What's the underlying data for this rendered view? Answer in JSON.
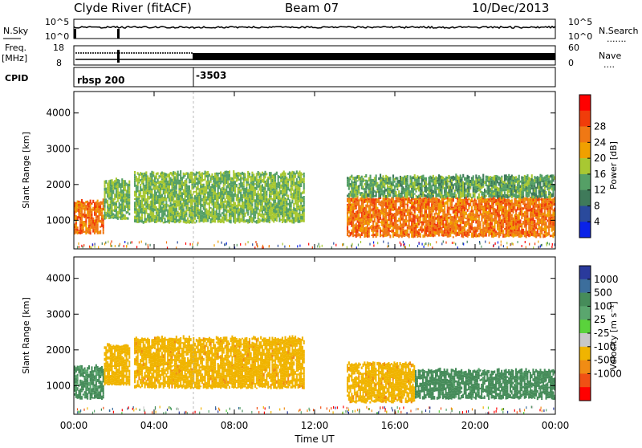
{
  "header": {
    "station": "Clyde River (fitACF)",
    "beam": "Beam 07",
    "date": "10/Dec/2013"
  },
  "panels": {
    "nsky_label": "N.Sky",
    "nsearch_label": "N.Search",
    "nsearch_dots": ".......",
    "nsky_ticks": [
      "10^5",
      "10^0"
    ],
    "nsearch_ticks": [
      "10^5",
      "10^0"
    ],
    "freq_label_1": "Freq.",
    "freq_label_2": "[MHz]",
    "freq_ticks": [
      "18",
      "8"
    ],
    "nave_label": "Nave",
    "nave_dots": "....",
    "nave_ticks": [
      "60",
      "0"
    ],
    "cpid_label": "CPID",
    "cpid_values": [
      "rbsp 200",
      "-3503"
    ]
  },
  "chart_data": [
    {
      "type": "heatmap",
      "title": "",
      "xlabel": "Time UT",
      "ylabel": "Slant Range [km]",
      "x_ticks": [
        "00:00",
        "04:00",
        "08:00",
        "12:00",
        "16:00",
        "20:00",
        "00:00"
      ],
      "y_ticks": [
        1000,
        2000,
        3000,
        4000
      ],
      "ylim": [
        200,
        4600
      ],
      "xlim_hours": [
        0,
        24
      ],
      "colorbar": {
        "label": "Power [dB]",
        "ticks": [
          4,
          8,
          12,
          16,
          20,
          24,
          28
        ],
        "colors": [
          "#0a22e8",
          "#2a4a9c",
          "#3f7a5a",
          "#55a066",
          "#a8c832",
          "#f0a000",
          "#f07814",
          "#f03c0a",
          "#ff0000"
        ]
      },
      "approximate_echo_regions": [
        {
          "t_start": 0.0,
          "t_end": 1.5,
          "range_low": 600,
          "range_high": 1500,
          "value": 26
        },
        {
          "t_start": 1.5,
          "t_end": 2.8,
          "range_low": 1000,
          "range_high": 2100,
          "value": 16
        },
        {
          "t_start": 3.0,
          "t_end": 11.5,
          "range_low": 900,
          "range_high": 2300,
          "value": 16
        },
        {
          "t_start": 13.6,
          "t_end": 24.0,
          "range_low": 500,
          "range_high": 1600,
          "value": 26
        },
        {
          "t_start": 13.6,
          "t_end": 24.0,
          "range_low": 1600,
          "range_high": 2200,
          "value": 14
        }
      ]
    },
    {
      "type": "heatmap",
      "title": "",
      "xlabel": "Time UT",
      "ylabel": "Slant Range [km]",
      "x_ticks": [
        "00:00",
        "04:00",
        "08:00",
        "12:00",
        "16:00",
        "20:00",
        "00:00"
      ],
      "y_ticks": [
        1000,
        2000,
        3000,
        4000
      ],
      "ylim": [
        200,
        4600
      ],
      "xlim_hours": [
        0,
        24
      ],
      "colorbar": {
        "label": "Velocity [m s⁻¹]",
        "ticks": [
          1000,
          500,
          100,
          25,
          -25,
          -100,
          -500,
          -1000
        ],
        "colors": [
          "#2a3a9c",
          "#3c6e9c",
          "#468c5a",
          "#5aa66e",
          "#5ad23c",
          "#c8c8c8",
          "#f0b400",
          "#f08c14",
          "#f05014",
          "#ff0000"
        ]
      },
      "approximate_echo_regions": [
        {
          "t_start": 0.0,
          "t_end": 1.5,
          "range_low": 600,
          "range_high": 1500,
          "value": 150
        },
        {
          "t_start": 1.5,
          "t_end": 2.8,
          "range_low": 1000,
          "range_high": 2100,
          "value": -300
        },
        {
          "t_start": 3.0,
          "t_end": 11.5,
          "range_low": 900,
          "range_high": 2300,
          "value": -400
        },
        {
          "t_start": 13.6,
          "t_end": 17.0,
          "range_low": 500,
          "range_high": 1600,
          "value": -400
        },
        {
          "t_start": 17.0,
          "t_end": 24.0,
          "range_low": 600,
          "range_high": 1400,
          "value": 200
        }
      ]
    }
  ]
}
